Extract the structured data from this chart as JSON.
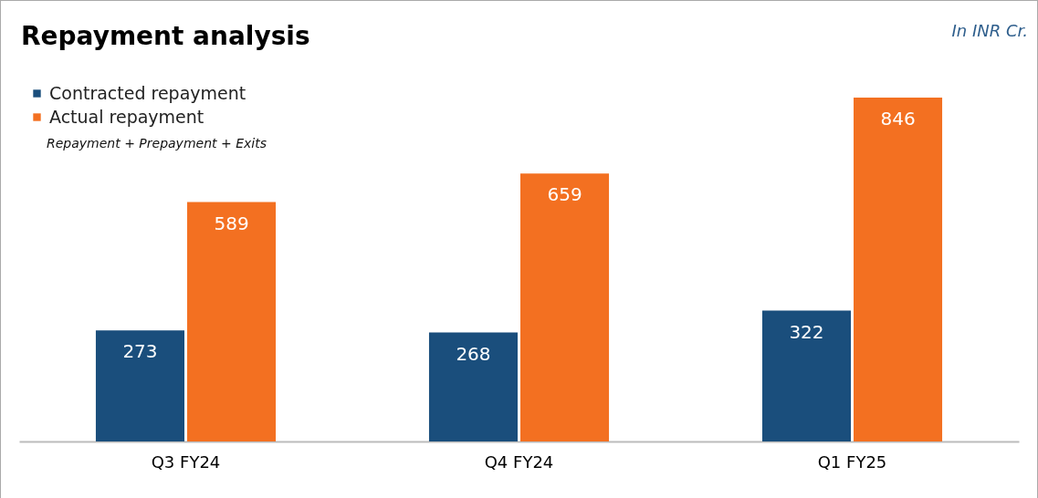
{
  "chart_data": {
    "type": "bar",
    "title": "Repayment analysis",
    "categories": [
      "Q3 FY24",
      "Q4 FY24",
      "Q1 FY25"
    ],
    "series": [
      {
        "name": "Contracted repayment",
        "color": "#1a4e7c",
        "values": [
          273,
          268,
          322
        ]
      },
      {
        "name": "Actual repayment",
        "color": "#f37021",
        "values": [
          589,
          659,
          846
        ]
      }
    ],
    "annotations": [
      "In INR Cr.",
      "Repayment + Prepayment + Exits"
    ],
    "data_labels": true,
    "legend": "top left",
    "grid": false
  }
}
